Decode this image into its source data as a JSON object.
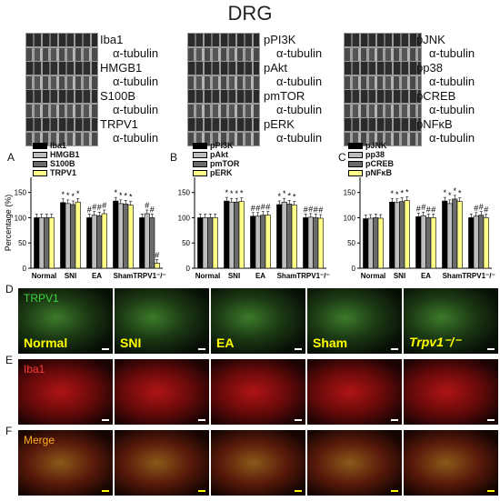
{
  "title": "DRG",
  "blots": {
    "col1": [
      {
        "label": "Iba1",
        "sub": "α-tubulin"
      },
      {
        "label": "HMGB1",
        "sub": "α-tubulin"
      },
      {
        "label": "S100B",
        "sub": "α-tubulin"
      },
      {
        "label": "TRPV1",
        "sub": "α-tubulin"
      }
    ],
    "col2": [
      {
        "label": "pPI3K",
        "sub": "α-tubulin"
      },
      {
        "label": "pAkt",
        "sub": "α-tubulin"
      },
      {
        "label": "pmTOR",
        "sub": "α-tubulin"
      },
      {
        "label": "pERK",
        "sub": "α-tubulin"
      }
    ],
    "col3": [
      {
        "label": "pJNK",
        "sub": "α-tubulin"
      },
      {
        "label": "pp38",
        "sub": "α-tubulin"
      },
      {
        "label": "pCREB",
        "sub": "α-tubulin"
      },
      {
        "label": "pNFκB",
        "sub": "α-tubulin"
      }
    ]
  },
  "colors": {
    "series": [
      "#000000",
      "#bdbdbd",
      "#6b6b6b",
      "#ffff88"
    ]
  },
  "chart_data": [
    {
      "panel": "A",
      "type": "bar",
      "categories": [
        "Normal",
        "SNI",
        "EA",
        "Sham",
        "TRPV1⁻/⁻"
      ],
      "ylabel": "Percentage (%)",
      "ylim": [
        0,
        180
      ],
      "yticks": [
        0,
        50,
        100,
        150
      ],
      "series": [
        {
          "name": "Iba1",
          "values": [
            100,
            130,
            100,
            133,
            100
          ]
        },
        {
          "name": "HMGB1",
          "values": [
            100,
            128,
            105,
            128,
            108
          ]
        },
        {
          "name": "S100B",
          "values": [
            100,
            126,
            104,
            127,
            100
          ]
        },
        {
          "name": "TRPV1",
          "values": [
            100,
            131,
            108,
            125,
            10
          ]
        }
      ],
      "annotations": [
        [
          "",
          "*",
          "#",
          "*",
          ""
        ],
        [
          "",
          "*",
          "#",
          "*",
          "#"
        ],
        [
          "",
          "*",
          "#",
          "*",
          "#"
        ],
        [
          "",
          "*",
          "#",
          "*",
          "#"
        ]
      ]
    },
    {
      "panel": "B",
      "type": "bar",
      "categories": [
        "Normal",
        "SNI",
        "EA",
        "Sham",
        "TRPV1⁻/⁻"
      ],
      "ylim": [
        0,
        180
      ],
      "yticks": [
        0,
        50,
        100,
        150
      ],
      "series": [
        {
          "name": "pPI3K",
          "values": [
            100,
            133,
            103,
            126,
            100
          ]
        },
        {
          "name": "pAkt",
          "values": [
            100,
            131,
            103,
            131,
            101
          ]
        },
        {
          "name": "pmTOR",
          "values": [
            100,
            131,
            105,
            127,
            100
          ]
        },
        {
          "name": "pERK",
          "values": [
            100,
            132,
            105,
            125,
            99
          ]
        }
      ],
      "annotations": [
        [
          "",
          "*",
          "#",
          "*",
          "#"
        ],
        [
          "",
          "*",
          "#",
          "*",
          "#"
        ],
        [
          "",
          "*",
          "#",
          "*",
          "#"
        ],
        [
          "",
          "*",
          "#",
          "*",
          "#"
        ]
      ]
    },
    {
      "panel": "C",
      "type": "bar",
      "categories": [
        "Normal",
        "SNI",
        "EA",
        "Sham",
        "TRPV1⁻/⁻"
      ],
      "ylim": [
        0,
        180
      ],
      "yticks": [
        0,
        50,
        100,
        150
      ],
      "series": [
        {
          "name": "pJNK",
          "values": [
            98,
            131,
            102,
            133,
            100
          ]
        },
        {
          "name": "pp38",
          "values": [
            99,
            130,
            104,
            128,
            103
          ]
        },
        {
          "name": "pCREB",
          "values": [
            100,
            132,
            100,
            137,
            105
          ]
        },
        {
          "name": "pNFκB",
          "values": [
            99,
            134,
            100,
            132,
            100
          ]
        }
      ],
      "annotations": [
        [
          "",
          "*",
          "#",
          "*",
          ""
        ],
        [
          "",
          "*",
          "#",
          "*",
          "#"
        ],
        [
          "",
          "*",
          "#",
          "*",
          "#"
        ],
        [
          "",
          "*",
          "#",
          "*",
          "#"
        ]
      ]
    }
  ],
  "panel_letters": {
    "a": "A",
    "b": "B",
    "c": "C",
    "d": "D",
    "e": "E",
    "f": "F"
  },
  "micro": {
    "rows": [
      {
        "letter": "D",
        "tag": "TRPV1",
        "tag_color": "#3cd23c",
        "tint": "green"
      },
      {
        "letter": "E",
        "tag": "Iba1",
        "tag_color": "#ff3a3a",
        "tint": "red"
      },
      {
        "letter": "F",
        "tag": "Merge",
        "tag_color": "#ffb020",
        "tint": "merge"
      }
    ],
    "groups": [
      "Normal",
      "SNI",
      "EA",
      "Sham",
      "Trpv1⁻/⁻"
    ]
  }
}
